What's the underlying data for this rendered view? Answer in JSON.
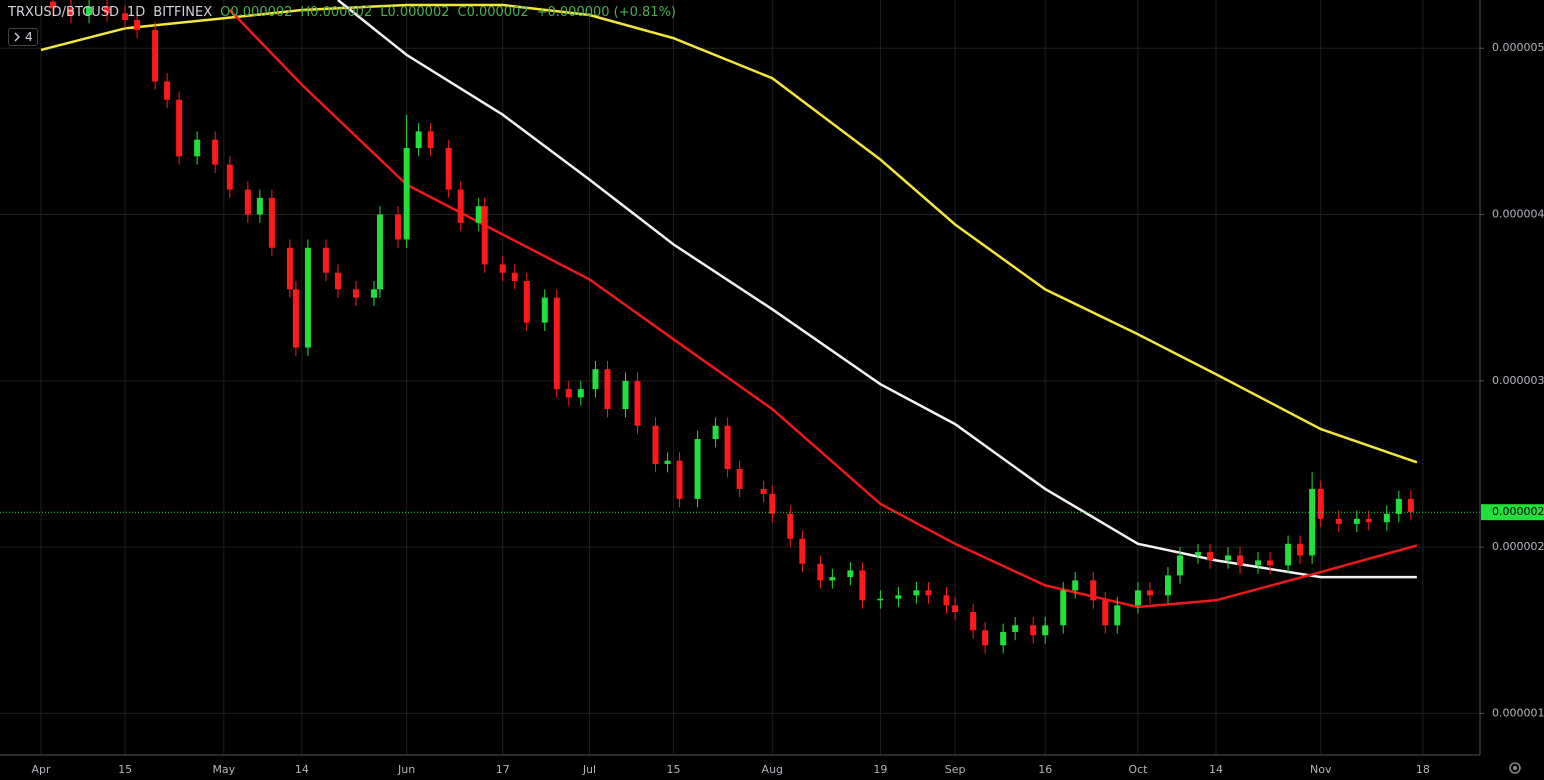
{
  "chart_data": {
    "type": "candlestick",
    "symbol": "TRXUSD/BTCUSD",
    "interval": "1D",
    "exchange": "BITFINEX",
    "legend_values": [
      "O0.000002",
      "H0.000002",
      "L0.000002",
      "C0.000002",
      "+0.000000 (+0.81%)"
    ],
    "collapsed_indicator_count": 4,
    "up_color": "#22e03a",
    "down_color": "#ff1a1a",
    "grid": true,
    "ylim": [
      7.5e-07,
      5.29e-06
    ],
    "yticks": [
      1e-06,
      2e-06,
      3e-06,
      4e-06,
      5e-06
    ],
    "xticks": [
      {
        "value": "Apr 1",
        "label": "Apr"
      },
      {
        "value": "Apr 15",
        "label": "15"
      },
      {
        "value": "May 1",
        "label": "May"
      },
      {
        "value": "May 14",
        "label": "14"
      },
      {
        "value": "Jun 1",
        "label": "Jun"
      },
      {
        "value": "Jun 17",
        "label": "17"
      },
      {
        "value": "Jul 1",
        "label": "Jul"
      },
      {
        "value": "Jul 15",
        "label": "15"
      },
      {
        "value": "Aug 1",
        "label": "Aug"
      },
      {
        "value": "Aug 19",
        "label": "19"
      },
      {
        "value": "Sep 1",
        "label": "Sep"
      },
      {
        "value": "Sep 16",
        "label": "16"
      },
      {
        "value": "Oct 1",
        "label": "Oct"
      },
      {
        "value": "Oct 14",
        "label": "14"
      },
      {
        "value": "Nov 1",
        "label": "Nov"
      },
      {
        "value": "Nov 18",
        "label": "18"
      }
    ],
    "last_price": {
      "value": 2.21e-06,
      "label": "0.000002",
      "color": "#22e03a"
    },
    "x": [
      "Apr 3",
      "Apr 6",
      "Apr 9",
      "Apr 12",
      "Apr 15",
      "Apr 17",
      "Apr 20",
      "Apr 22",
      "Apr 24",
      "Apr 27",
      "Apr 30",
      "May 2",
      "May 5",
      "May 7",
      "May 9",
      "May 12",
      "May 13",
      "May 15",
      "May 18",
      "May 20",
      "May 23",
      "May 26",
      "May 27",
      "May 30",
      "Jun 1",
      "Jun 3",
      "Jun 5",
      "Jun 8",
      "Jun 10",
      "Jun 13",
      "Jun 14",
      "Jun 17",
      "Jun 19",
      "Jun 21",
      "Jun 24",
      "Jun 26",
      "Jun 28",
      "Jun 30",
      "Jul 2",
      "Jul 4",
      "Jul 7",
      "Jul 9",
      "Jul 12",
      "Jul 14",
      "Jul 16",
      "Jul 19",
      "Jul 22",
      "Jul 24",
      "Jul 26",
      "Jul 30",
      "Aug 1",
      "Aug 4",
      "Aug 6",
      "Aug 9",
      "Aug 11",
      "Aug 14",
      "Aug 16",
      "Aug 19",
      "Aug 22",
      "Aug 25",
      "Aug 27",
      "Aug 30",
      "Sep 1",
      "Sep 4",
      "Sep 6",
      "Sep 9",
      "Sep 11",
      "Sep 14",
      "Sep 16",
      "Sep 19",
      "Sep 21",
      "Sep 24",
      "Sep 26",
      "Sep 28",
      "Oct 1",
      "Oct 3",
      "Oct 6",
      "Oct 8",
      "Oct 11",
      "Oct 13",
      "Oct 16",
      "Oct 18",
      "Oct 21",
      "Oct 23",
      "Oct 26",
      "Oct 28",
      "Oct 30",
      "Nov 1",
      "Nov 4",
      "Nov 7",
      "Nov 9",
      "Nov 12",
      "Nov 14",
      "Nov 16"
    ],
    "open": [
      5.28e-06,
      5.24e-06,
      5.2e-06,
      5.25e-06,
      5.21e-06,
      5.17e-06,
      5.11e-06,
      4.8e-06,
      4.69e-06,
      4.35e-06,
      4.45e-06,
      4.3e-06,
      4.15e-06,
      4e-06,
      4.1e-06,
      3.8e-06,
      3.55e-06,
      3.2e-06,
      3.8e-06,
      3.65e-06,
      3.55e-06,
      3.5e-06,
      3.55e-06,
      4e-06,
      3.85e-06,
      4.4e-06,
      4.5e-06,
      4.4e-06,
      4.15e-06,
      3.95e-06,
      4.05e-06,
      3.7e-06,
      3.65e-06,
      3.6e-06,
      3.35e-06,
      3.5e-06,
      2.95e-06,
      2.9e-06,
      2.95e-06,
      3.07e-06,
      2.83e-06,
      3e-06,
      2.73e-06,
      2.5e-06,
      2.52e-06,
      2.29e-06,
      2.65e-06,
      2.73e-06,
      2.47e-06,
      2.35e-06,
      2.32e-06,
      2.2e-06,
      2.05e-06,
      1.9e-06,
      1.8e-06,
      1.82e-06,
      1.86e-06,
      1.68e-06,
      1.69e-06,
      1.71e-06,
      1.74e-06,
      1.71e-06,
      1.65e-06,
      1.61e-06,
      1.5e-06,
      1.41e-06,
      1.49e-06,
      1.53e-06,
      1.47e-06,
      1.53e-06,
      1.74e-06,
      1.8e-06,
      1.68e-06,
      1.53e-06,
      1.65e-06,
      1.74e-06,
      1.71e-06,
      1.83e-06,
      1.95e-06,
      1.97e-06,
      1.92e-06,
      1.95e-06,
      1.89e-06,
      1.92e-06,
      1.89e-06,
      2.02e-06,
      1.95e-06,
      2.35e-06,
      2.17e-06,
      2.14e-06,
      2.17e-06,
      2.15e-06,
      2.2e-06,
      2.29e-06
    ],
    "high": [
      5.33e-06,
      5.29e-06,
      5.3e-06,
      5.3e-06,
      5.26e-06,
      5.22e-06,
      5.16e-06,
      4.85e-06,
      4.74e-06,
      4.5e-06,
      4.5e-06,
      4.35e-06,
      4.2e-06,
      4.15e-06,
      4.15e-06,
      3.85e-06,
      3.6e-06,
      3.85e-06,
      3.85e-06,
      3.7e-06,
      3.6e-06,
      3.6e-06,
      4.05e-06,
      4.05e-06,
      4.6e-06,
      4.55e-06,
      4.55e-06,
      4.45e-06,
      4.2e-06,
      4.1e-06,
      4.1e-06,
      3.75e-06,
      3.7e-06,
      3.65e-06,
      3.55e-06,
      3.55e-06,
      3e-06,
      3e-06,
      3.12e-06,
      3.12e-06,
      3.05e-06,
      3.05e-06,
      2.78e-06,
      2.57e-06,
      2.57e-06,
      2.7e-06,
      2.78e-06,
      2.78e-06,
      2.52e-06,
      2.4e-06,
      2.37e-06,
      2.25e-06,
      2.1e-06,
      1.95e-06,
      1.87e-06,
      1.91e-06,
      1.91e-06,
      1.74e-06,
      1.76e-06,
      1.79e-06,
      1.79e-06,
      1.76e-06,
      1.7e-06,
      1.66e-06,
      1.55e-06,
      1.54e-06,
      1.58e-06,
      1.58e-06,
      1.58e-06,
      1.79e-06,
      1.85e-06,
      1.85e-06,
      1.73e-06,
      1.7e-06,
      1.79e-06,
      1.79e-06,
      1.88e-06,
      2e-06,
      2.02e-06,
      2.02e-06,
      2e-06,
      2e-06,
      1.97e-06,
      1.97e-06,
      2.07e-06,
      2.07e-06,
      2.45e-06,
      2.4e-06,
      2.22e-06,
      2.22e-06,
      2.22e-06,
      2.25e-06,
      2.34e-06,
      2.34e-06
    ],
    "low": [
      5.19e-06,
      5.15e-06,
      5.15e-06,
      5.16e-06,
      5.12e-06,
      5.06e-06,
      4.75e-06,
      4.64e-06,
      4.3e-06,
      4.3e-06,
      4.25e-06,
      4.1e-06,
      3.95e-06,
      3.95e-06,
      3.75e-06,
      3.5e-06,
      3.15e-06,
      3.15e-06,
      3.6e-06,
      3.5e-06,
      3.45e-06,
      3.45e-06,
      3.5e-06,
      3.8e-06,
      3.8e-06,
      4.35e-06,
      4.35e-06,
      4.1e-06,
      3.9e-06,
      3.9e-06,
      3.65e-06,
      3.6e-06,
      3.55e-06,
      3.3e-06,
      3.3e-06,
      2.9e-06,
      2.85e-06,
      2.85e-06,
      2.9e-06,
      2.78e-06,
      2.78e-06,
      2.68e-06,
      2.45e-06,
      2.45e-06,
      2.24e-06,
      2.24e-06,
      2.6e-06,
      2.42e-06,
      2.3e-06,
      2.27e-06,
      2.15e-06,
      2e-06,
      1.85e-06,
      1.75e-06,
      1.75e-06,
      1.77e-06,
      1.63e-06,
      1.63e-06,
      1.64e-06,
      1.66e-06,
      1.66e-06,
      1.6e-06,
      1.56e-06,
      1.45e-06,
      1.36e-06,
      1.36e-06,
      1.44e-06,
      1.42e-06,
      1.42e-06,
      1.48e-06,
      1.69e-06,
      1.63e-06,
      1.48e-06,
      1.48e-06,
      1.6e-06,
      1.66e-06,
      1.66e-06,
      1.78e-06,
      1.9e-06,
      1.87e-06,
      1.87e-06,
      1.84e-06,
      1.84e-06,
      1.84e-06,
      1.84e-06,
      1.9e-06,
      1.9e-06,
      2.12e-06,
      2.09e-06,
      2.09e-06,
      2.1e-06,
      2.1e-06,
      2.15e-06,
      2.16e-06
    ],
    "close": [
      5.24e-06,
      5.2e-06,
      5.25e-06,
      5.21e-06,
      5.17e-06,
      5.11e-06,
      4.8e-06,
      4.69e-06,
      4.35e-06,
      4.45e-06,
      4.3e-06,
      4.15e-06,
      4e-06,
      4.1e-06,
      3.8e-06,
      3.55e-06,
      3.2e-06,
      3.8e-06,
      3.65e-06,
      3.55e-06,
      3.5e-06,
      3.55e-06,
      4e-06,
      3.85e-06,
      4.4e-06,
      4.5e-06,
      4.4e-06,
      4.15e-06,
      3.95e-06,
      4.05e-06,
      3.7e-06,
      3.65e-06,
      3.6e-06,
      3.35e-06,
      3.5e-06,
      2.95e-06,
      2.9e-06,
      2.95e-06,
      3.07e-06,
      2.83e-06,
      3e-06,
      2.73e-06,
      2.5e-06,
      2.52e-06,
      2.29e-06,
      2.65e-06,
      2.73e-06,
      2.47e-06,
      2.35e-06,
      2.32e-06,
      2.2e-06,
      2.05e-06,
      1.9e-06,
      1.8e-06,
      1.82e-06,
      1.86e-06,
      1.68e-06,
      1.69e-06,
      1.71e-06,
      1.74e-06,
      1.71e-06,
      1.65e-06,
      1.61e-06,
      1.5e-06,
      1.41e-06,
      1.49e-06,
      1.53e-06,
      1.47e-06,
      1.53e-06,
      1.74e-06,
      1.8e-06,
      1.68e-06,
      1.53e-06,
      1.65e-06,
      1.74e-06,
      1.71e-06,
      1.83e-06,
      1.95e-06,
      1.97e-06,
      1.92e-06,
      1.95e-06,
      1.89e-06,
      1.92e-06,
      1.89e-06,
      2.02e-06,
      1.95e-06,
      2.35e-06,
      2.17e-06,
      2.14e-06,
      2.17e-06,
      2.15e-06,
      2.2e-06,
      2.29e-06,
      2.21e-06
    ],
    "moving_averages": [
      {
        "color": "#f5e63a",
        "x": [
          "Apr 1",
          "Apr 15",
          "May 1",
          "May 14",
          "Jun 1",
          "Jun 17",
          "Jul 1",
          "Jul 15",
          "Aug 1",
          "Aug 19",
          "Sep 1",
          "Sep 16",
          "Oct 1",
          "Oct 14",
          "Nov 1",
          "Nov 17"
        ],
        "values": [
          4.99e-06,
          5.12e-06,
          5.18e-06,
          5.23e-06,
          5.26e-06,
          5.26e-06,
          5.2e-06,
          5.06e-06,
          4.82e-06,
          4.33e-06,
          3.94e-06,
          3.55e-06,
          3.28e-06,
          3.04e-06,
          2.71e-06,
          2.51e-06
        ]
      },
      {
        "color": "#f2f2f2",
        "x": [
          "May 20",
          "Jun 1",
          "Jun 17",
          "Jul 1",
          "Jul 15",
          "Aug 1",
          "Aug 19",
          "Sep 1",
          "Sep 16",
          "Oct 1",
          "Oct 14",
          "Nov 1",
          "Nov 17"
        ],
        "values": [
          5.29e-06,
          4.96e-06,
          4.6e-06,
          4.21e-06,
          3.82e-06,
          3.43e-06,
          2.98e-06,
          2.74e-06,
          2.35e-06,
          2.02e-06,
          1.92e-06,
          1.82e-06,
          1.82e-06
        ]
      },
      {
        "color": "#f01818",
        "x": [
          "May 2",
          "May 14",
          "Jun 1",
          "Jun 17",
          "Jul 1",
          "Jul 15",
          "Aug 1",
          "Aug 19",
          "Sep 1",
          "Sep 16",
          "Oct 1",
          "Oct 14",
          "Nov 1",
          "Nov 17"
        ],
        "values": [
          5.23e-06,
          4.78e-06,
          4.18e-06,
          3.88e-06,
          3.61e-06,
          3.25e-06,
          2.83e-06,
          2.26e-06,
          2.02e-06,
          1.77e-06,
          1.64e-06,
          1.68e-06,
          1.85e-06,
          2.01e-06
        ]
      }
    ]
  }
}
